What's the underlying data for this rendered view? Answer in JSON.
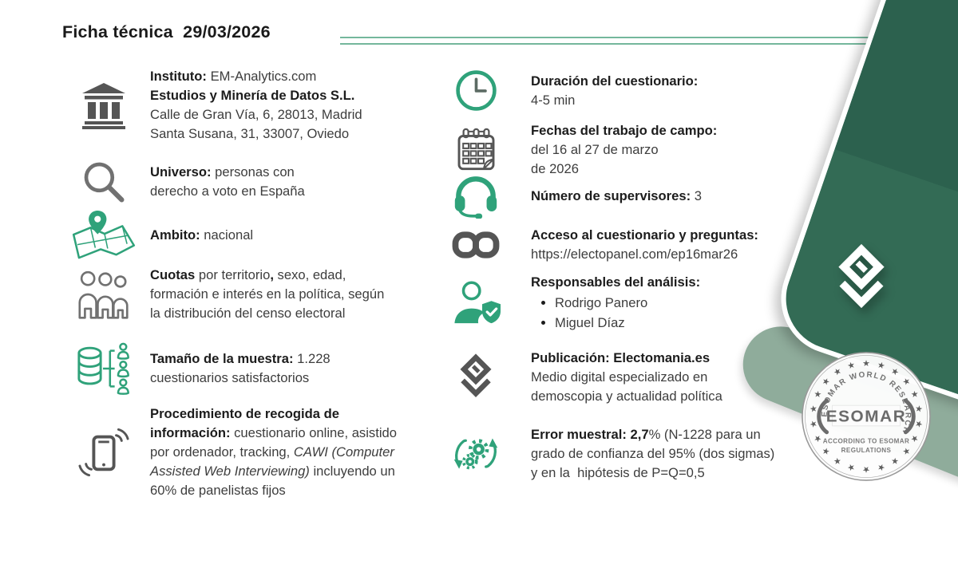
{
  "header": {
    "title": "Ficha técnica  29/03/2026"
  },
  "columns": {
    "left": [
      {
        "id": "instituto",
        "icon": "bank-icon",
        "tone": "gray",
        "lines": [
          [
            {
              "t": "Instituto:",
              "b": 1
            },
            {
              "t": " EM-Analytics.com"
            }
          ],
          [
            {
              "t": "Estudios y Minería de Datos S.L.",
              "b": 1
            }
          ],
          [
            {
              "t": "Calle de Gran Vía, 6, 28013, Madrid"
            }
          ],
          [
            {
              "t": "Santa Susana, 31, 33007, Oviedo"
            }
          ]
        ]
      },
      {
        "id": "universo",
        "icon": "magnifier-icon",
        "tone": "graylight",
        "lines": [
          [
            {
              "t": "Universo:",
              "b": 1
            },
            {
              "t": " personas con"
            }
          ],
          [
            {
              "t": "derecho a voto en España"
            }
          ]
        ]
      },
      {
        "id": "ambito",
        "icon": "map-pin-icon",
        "tone": "green",
        "lines": [
          [
            {
              "t": "Ambito:",
              "b": 1
            },
            {
              "t": " nacional"
            }
          ]
        ]
      },
      {
        "id": "cuotas",
        "icon": "people-icon",
        "tone": "graylight",
        "lines": [
          [
            {
              "t": "Cuotas",
              "b": 1
            },
            {
              "t": " por territorio"
            },
            {
              "t": ",",
              "b": 1
            },
            {
              "t": " sexo, edad,"
            }
          ],
          [
            {
              "t": "formación e interés en la política, según"
            }
          ],
          [
            {
              "t": "la distribución del censo electoral"
            }
          ]
        ]
      },
      {
        "id": "tamano",
        "icon": "database-icon",
        "tone": "green",
        "lines": [
          [
            {
              "t": "Tamaño de la muestra:",
              "b": 1
            },
            {
              "t": " 1.228"
            }
          ],
          [
            {
              "t": "cuestionarios satisfactorios"
            }
          ]
        ]
      },
      {
        "id": "procedimiento",
        "icon": "phone-icon",
        "tone": "gray",
        "lines": [
          [
            {
              "t": "Procedimiento de recogida de",
              "b": 1
            }
          ],
          [
            {
              "t": "información:",
              "b": 1
            },
            {
              "t": " cuestionario online, asistido"
            }
          ],
          [
            {
              "t": "por ordenador, tracking, "
            },
            {
              "t": "CAWI (Computer",
              "i": 1
            }
          ],
          [
            {
              "t": "Assisted Web Interviewing)",
              "i": 1
            },
            {
              "t": " incluyendo un"
            }
          ],
          [
            {
              "t": "60% de panelistas fijos"
            }
          ]
        ]
      }
    ],
    "right": [
      {
        "id": "duracion",
        "icon": "clock-icon",
        "tone": "green",
        "lines": [
          [
            {
              "t": "Duración del cuestionario:",
              "b": 1
            }
          ],
          [
            {
              "t": "4-5 min"
            }
          ]
        ]
      },
      {
        "id": "fechas",
        "icon": "calendar-icon",
        "tone": "gray",
        "lines": [
          [
            {
              "t": "Fechas del trabajo de campo:",
              "b": 1
            }
          ],
          [
            {
              "t": "del 16 al 27 de marzo"
            }
          ],
          [
            {
              "t": "de 2026"
            }
          ]
        ]
      },
      {
        "id": "supervisores",
        "icon": "headset-icon",
        "tone": "green",
        "lines": [
          [
            {
              "t": "Número de supervisores:",
              "b": 1
            },
            {
              "t": " 3"
            }
          ]
        ]
      },
      {
        "id": "acceso",
        "icon": "link-icon",
        "tone": "gray",
        "lines": [
          [
            {
              "t": "Acceso al cuestionario y preguntas:",
              "b": 1
            }
          ],
          [
            {
              "t": "https://electopanel.com/ep16mar26"
            }
          ]
        ]
      },
      {
        "id": "responsables",
        "icon": "analyst-shield-icon",
        "tone": "green",
        "lines": [
          [
            {
              "t": "Responsables del análisis:",
              "b": 1
            }
          ]
        ],
        "bullets": [
          "Rodrigo Panero",
          "Miguel Díaz"
        ]
      },
      {
        "id": "publicacion",
        "icon": "electomania-logo-icon",
        "tone": "gray",
        "lines": [
          [
            {
              "t": "Publicación: Electomania.es",
              "b": 1
            }
          ],
          [
            {
              "t": "Medio digital especializado en"
            }
          ],
          [
            {
              "t": "demoscopia y actualidad política"
            }
          ]
        ]
      },
      {
        "id": "error",
        "icon": "gears-sync-icon",
        "tone": "green",
        "lines": [
          [
            {
              "t": "Error muestral: 2,7",
              "b": 1
            },
            {
              "t": "% (N-1228 para un"
            }
          ],
          [
            {
              "t": "grado de confianza del 95% (dos sigmas)"
            }
          ],
          [
            {
              "t": "y en la  hipótesis de P=Q=0,5"
            }
          ]
        ]
      }
    ]
  },
  "seal": {
    "arc_text": "ESOMAR WORLD RESEARCH",
    "center": "ESOMAR",
    "sub1": "ACCORDING TO ESOMAR",
    "sub2": "REGULATIONS"
  },
  "colors": {
    "accent_green": "#2fa27a",
    "dark_green": "#2c614e",
    "sage_green": "#8fac9b",
    "rule_green": "#74b79c",
    "icon_gray": "#555555",
    "text_heading": "#1c1c1c",
    "text_body": "#3d3d3d"
  }
}
